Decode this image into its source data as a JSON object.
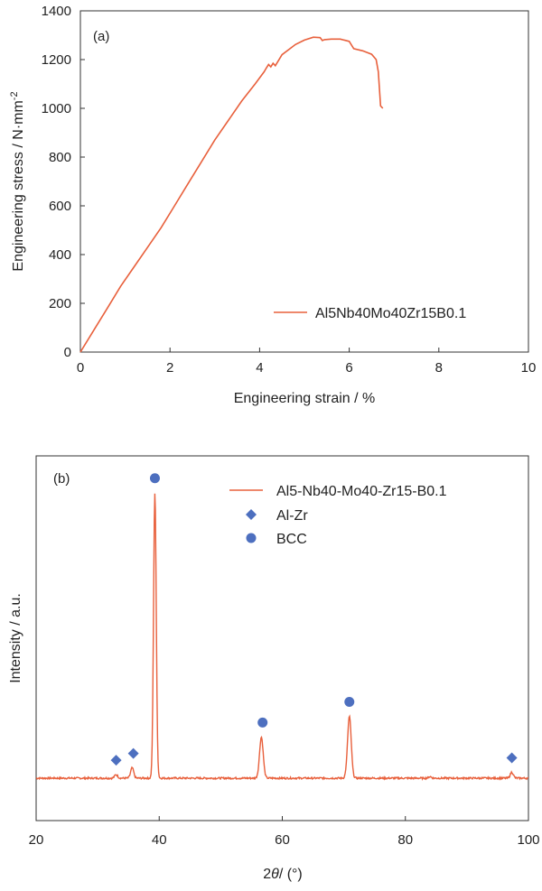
{
  "chart_data": [
    {
      "type": "line",
      "panel_label": "(a)",
      "xlabel": "Engineering strain / %",
      "ylabel": "Engineering stress / N·mm",
      "ylabel_superscript": "-2",
      "xlim": [
        0,
        10
      ],
      "ylim": [
        0,
        1400
      ],
      "xticks": [
        0,
        2,
        4,
        6,
        8,
        10
      ],
      "yticks": [
        0,
        200,
        400,
        600,
        800,
        1000,
        1200,
        1400
      ],
      "grid": false,
      "legend_position": "bottom-right",
      "color": "#e8603c",
      "series": [
        {
          "name": "Al5Nb40Mo40Zr15B0.1",
          "x": [
            0,
            0.3,
            0.6,
            0.9,
            1.2,
            1.5,
            1.8,
            2.1,
            2.4,
            2.7,
            3.0,
            3.3,
            3.6,
            3.9,
            4.1,
            4.15,
            4.2,
            4.25,
            4.3,
            4.35,
            4.5,
            4.8,
            5.0,
            5.2,
            5.35,
            5.4,
            5.45,
            5.6,
            5.8,
            6.0,
            6.1,
            6.3,
            6.5,
            6.6,
            6.65,
            6.7,
            6.75
          ],
          "y": [
            0,
            90,
            180,
            270,
            350,
            430,
            510,
            600,
            690,
            780,
            870,
            950,
            1030,
            1100,
            1150,
            1165,
            1180,
            1170,
            1185,
            1175,
            1220,
            1262,
            1280,
            1292,
            1290,
            1278,
            1282,
            1284,
            1284,
            1275,
            1245,
            1236,
            1222,
            1200,
            1150,
            1010,
            1000
          ]
        }
      ]
    },
    {
      "type": "line",
      "panel_label": "(b)",
      "xlabel": "2θ / (°)",
      "xlabel_theta": "θ",
      "xlabel_prefix": "2",
      "xlabel_suffix": "/ (°)",
      "ylabel": "Intensity / a.u.",
      "xlim": [
        20,
        100
      ],
      "ylim": [
        0,
        1
      ],
      "xticks": [
        20,
        40,
        60,
        80,
        100
      ],
      "grid": false,
      "legend_position": "top-right",
      "color": "#e8603c",
      "series": [
        {
          "name": "Al5-Nb40-Mo40-Zr15-B0.1",
          "peaks": [
            {
              "x": 33.0,
              "height": 0.012
            },
            {
              "x": 35.6,
              "height": 0.035
            },
            {
              "x": 39.3,
              "height": 0.97
            },
            {
              "x": 56.6,
              "height": 0.14
            },
            {
              "x": 70.9,
              "height": 0.21
            },
            {
              "x": 84.0,
              "height": 0.005
            },
            {
              "x": 97.3,
              "height": 0.02
            }
          ]
        }
      ],
      "markers": [
        {
          "name": "Al-Zr",
          "shape": "diamond",
          "color": "#4d6fbf",
          "x": [
            33.0,
            35.8,
            97.3
          ]
        },
        {
          "name": "BCC",
          "shape": "circle",
          "color": "#4d6fbf",
          "x": [
            39.3,
            56.8,
            70.9
          ]
        }
      ]
    }
  ]
}
